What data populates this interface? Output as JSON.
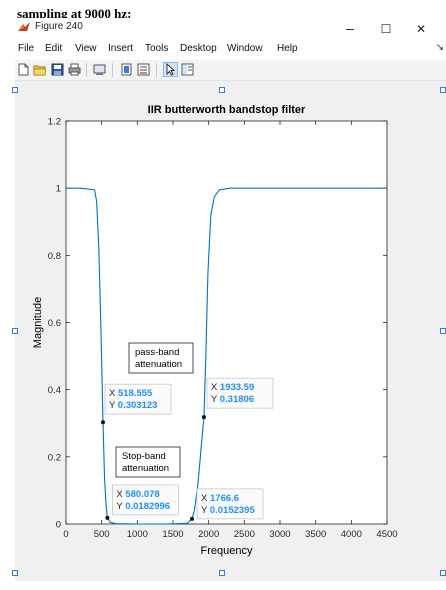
{
  "caption": {
    "prefix": "sampling at 9000 ",
    "misspelled": "hz",
    "suffix": ":"
  },
  "window": {
    "title": "Figure 240",
    "minimize_glyph": "–",
    "maximize_glyph": "☐",
    "close_glyph": "✕"
  },
  "menu": {
    "items": [
      "File",
      "Edit",
      "View",
      "Insert",
      "Tools",
      "Desktop",
      "Window",
      "Help"
    ],
    "overflow_glyph": "↘"
  },
  "toolbar": {
    "icons": [
      "new-figure-icon",
      "open-file-icon",
      "save-icon",
      "print-icon",
      "link-plot-icon",
      "insert-colorbar-icon",
      "insert-legend-icon",
      "edit-plot-icon",
      "property-inspector-icon"
    ]
  },
  "colors": {
    "line": "#0072bd",
    "datatip_text": "#1e90ff",
    "axes_bg": "#ffffff",
    "figure_bg": "#f0f0f0"
  },
  "chart_data": {
    "type": "line",
    "title": "IIR butterworth bandstop filter",
    "xlabel": "Frequency",
    "ylabel": "Magnitude",
    "xlim": [
      0,
      4500
    ],
    "ylim": [
      0,
      1.2
    ],
    "xticks": [
      "0",
      "500",
      "1000",
      "1500",
      "2000",
      "2500",
      "3000",
      "3500",
      "4000",
      "4500"
    ],
    "yticks": [
      "0",
      "0.2",
      "0.4",
      "0.6",
      "0.8",
      "1",
      "1.2"
    ],
    "grid": false,
    "series": [
      {
        "x": [
          0,
          200,
          400,
          430,
          460,
          490,
          518.555,
          540,
          560,
          580.078,
          620,
          700,
          1000,
          1400,
          1700,
          1766.6,
          1800,
          1850,
          1900,
          1933.59,
          1960,
          1990,
          2030,
          2080,
          2150,
          2300,
          3000,
          4500
        ],
        "y": [
          1.0,
          1.0,
          0.995,
          0.96,
          0.82,
          0.58,
          0.303123,
          0.14,
          0.06,
          0.0182996,
          0.005,
          0.001,
          0.0,
          0.0,
          0.002,
          0.0152395,
          0.04,
          0.12,
          0.24,
          0.31806,
          0.5,
          0.75,
          0.92,
          0.975,
          0.995,
          1.0,
          1.0,
          1.0
        ]
      }
    ],
    "datatips": [
      {
        "x_label": "X",
        "x_value": "518.555",
        "y_label": "Y",
        "y_value": "0.303123",
        "x": 518.555,
        "y": 0.303123,
        "side": "right-up"
      },
      {
        "x_label": "X",
        "x_value": "580.078",
        "y_label": "Y",
        "y_value": "0.0182996",
        "x": 580.078,
        "y": 0.0182996,
        "side": "right-up"
      },
      {
        "x_label": "X",
        "x_value": "1766.6",
        "y_label": "Y",
        "y_value": "0.0152395",
        "x": 1766.6,
        "y": 0.0152395,
        "side": "right-up"
      },
      {
        "x_label": "X",
        "x_value": "1933.59",
        "y_label": "Y",
        "y_value": "0.31806",
        "x": 1933.59,
        "y": 0.31806,
        "side": "right-up"
      }
    ],
    "annotations": [
      {
        "lines": [
          "pass-band",
          "attenuation"
        ]
      },
      {
        "lines": [
          "Stop-band",
          "attenuation"
        ]
      }
    ]
  }
}
